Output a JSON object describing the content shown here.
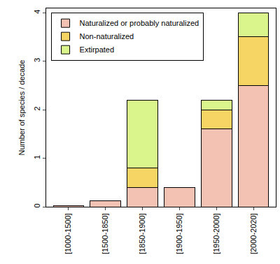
{
  "chart_data": {
    "type": "bar",
    "stacked": true,
    "y_label": "Number of species / decade",
    "categories": [
      "[1000-1500]",
      "[1500-1850]",
      "[1850-1900]",
      "[1900-1950]",
      "[1950-2000]",
      "[2000-2020]"
    ],
    "series": [
      {
        "name": "Naturalized or probably naturalized",
        "color": "#f4c2b3",
        "values": [
          0.02,
          0.12,
          0.4,
          0.4,
          1.6,
          2.5
        ]
      },
      {
        "name": "Non-naturalized",
        "color": "#f7d565",
        "values": [
          0,
          0,
          0.4,
          0,
          0.4,
          1.0
        ]
      },
      {
        "name": "Extirpated",
        "color": "#d9f58c",
        "values": [
          0,
          0,
          1.4,
          0,
          0.2,
          0.5
        ]
      }
    ],
    "ylim": [
      0,
      4.09
    ],
    "yticks": [
      0,
      1,
      2,
      3,
      4
    ],
    "grid": false,
    "legend": "top-left"
  }
}
